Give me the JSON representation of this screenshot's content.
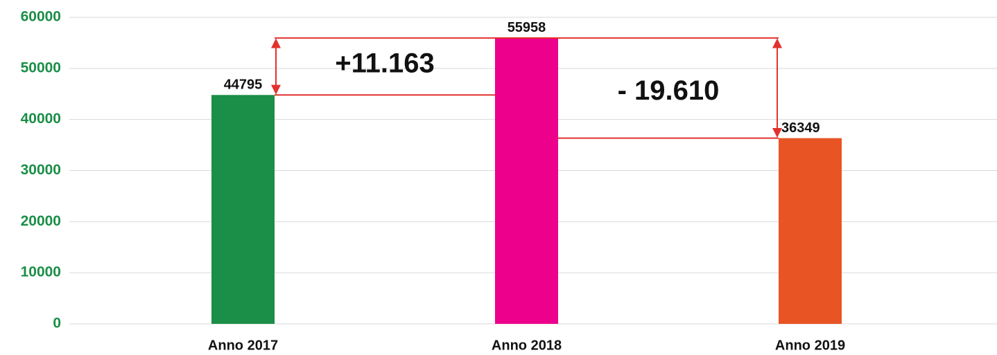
{
  "chart_data": {
    "type": "bar",
    "categories": [
      "Anno 2017",
      "Anno 2018",
      "Anno 2019"
    ],
    "values": [
      44795,
      55958,
      36349
    ],
    "colors": [
      "#1b8e47",
      "#ec008c",
      "#e95424"
    ],
    "ylim": [
      0,
      60000
    ],
    "yticks": [
      0,
      10000,
      20000,
      30000,
      40000,
      50000,
      60000
    ],
    "grid": true,
    "annotations": [
      {
        "text": "+11.163"
      },
      {
        "text": "- 19.610"
      }
    ]
  }
}
